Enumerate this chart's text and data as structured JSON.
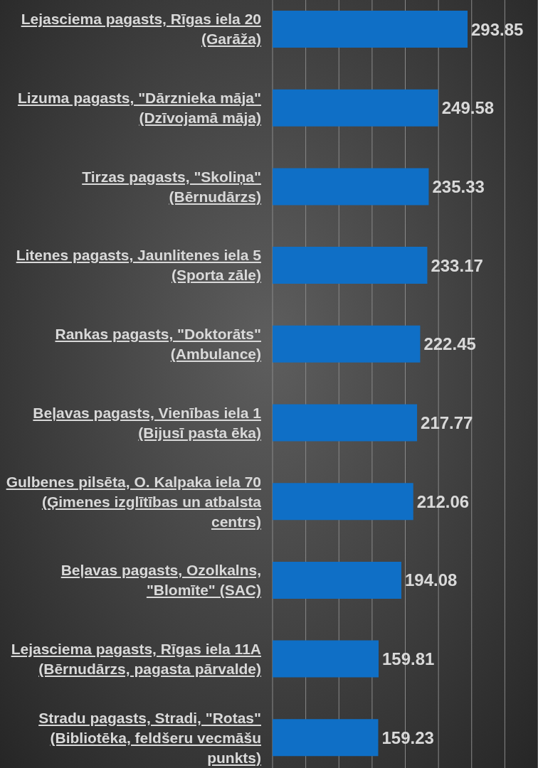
{
  "chart_data": {
    "type": "bar",
    "orientation": "horizontal",
    "categories": [
      "Lejasciema pagasts, Rīgas iela 20 (Garāža)",
      "Lizuma pagasts, \"Dārznieka māja\" (Dzīvojamā māja)",
      "Tirzas pagasts, \"Skoliņa\" (Bērnudārzs)",
      "Litenes pagasts, Jaunlitenes iela 5 (Sporta zāle)",
      "Rankas pagasts, \"Doktorāts\" (Ambulance)",
      "Beļavas pagasts, Vienības iela 1 (Bijusī pasta ēka)",
      "Gulbenes pilsēta, O. Kalpaka iela 70 (Ģimenes izglītības un atbalsta centrs)",
      "Beļavas pagasts, Ozolkalns, \"Blomīte\" (SAC)",
      "Lejasciema pagasts, Rīgas iela 11A (Bērnudārzs, pagasta pārvalde)",
      "Stradu pagasts, Stradi, \"Rotas\" (Bibliotēka, feldšeru vecmāšu punkts)"
    ],
    "values": [
      293.85,
      249.58,
      235.33,
      233.17,
      222.45,
      217.77,
      212.06,
      194.08,
      159.81,
      159.23
    ],
    "color": "#0f6fc6",
    "data_labels": true,
    "xlim": [
      0,
      400
    ],
    "tick_labels": "y",
    "grid": "x",
    "legend": false
  }
}
